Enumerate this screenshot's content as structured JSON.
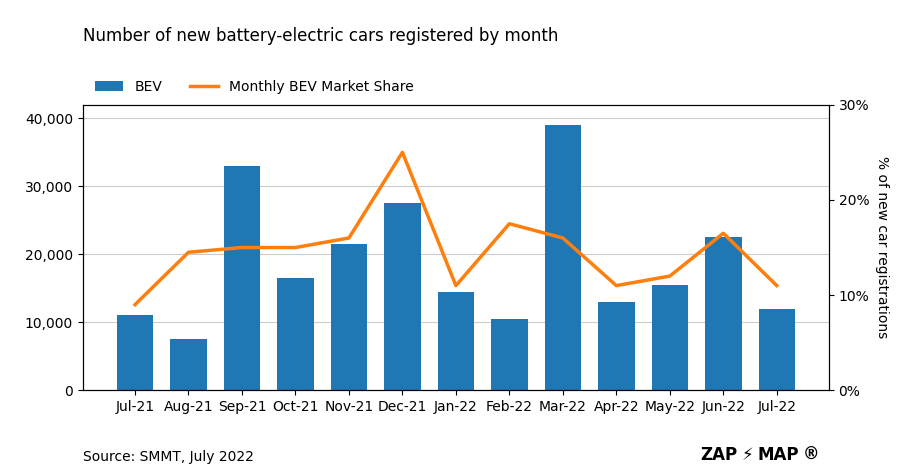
{
  "chart_data": {
    "type": "bar",
    "title": "Number of new battery-electric cars registered by month",
    "categories": [
      "Jul-21",
      "Aug-21",
      "Sep-21",
      "Oct-21",
      "Nov-21",
      "Dec-21",
      "Jan-22",
      "Feb-22",
      "Mar-22",
      "Apr-22",
      "May-22",
      "Jun-22",
      "Jul-22"
    ],
    "series": [
      {
        "name": "BEV",
        "type": "bar",
        "values": [
          11100,
          7500,
          33000,
          16500,
          21500,
          27500,
          14500,
          10500,
          39000,
          13000,
          15500,
          22500,
          12000
        ]
      },
      {
        "name": "Monthly BEV Market Share",
        "type": "line",
        "axis": "y2",
        "values": [
          9.0,
          14.5,
          15.0,
          15.0,
          16.0,
          25.0,
          11.0,
          17.5,
          16.0,
          11.0,
          12.0,
          16.5,
          11.0
        ]
      }
    ],
    "ylim": [
      0,
      42000
    ],
    "yticks": [
      0,
      {
        "value": 10000,
        "label": "10,000"
      },
      {
        "value": 20000,
        "label": "20,000"
      },
      {
        "value": 30000,
        "label": "30,000"
      },
      {
        "value": 40000,
        "label": "40,000"
      }
    ],
    "y2label": "% of new car registrations",
    "y2lim": [
      0,
      30
    ],
    "y2ticks": [
      {
        "value": 0,
        "label": "0%"
      },
      {
        "value": 10,
        "label": "10%"
      },
      {
        "value": 20,
        "label": "20%"
      },
      {
        "value": 30,
        "label": "30%"
      }
    ],
    "grid": true,
    "legend": "upper left",
    "source": "Source: SMMT, July 2022",
    "annotations": [
      "ZAP",
      "⚡",
      "MAP",
      "®"
    ]
  }
}
